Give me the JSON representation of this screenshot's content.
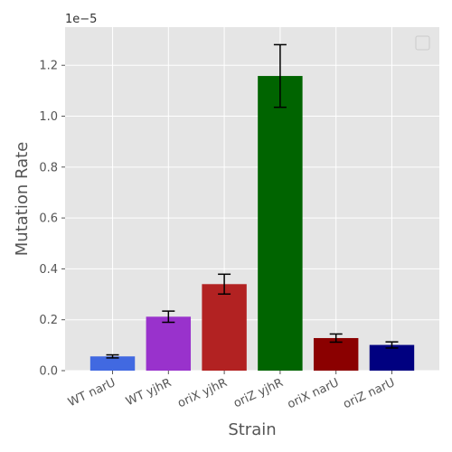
{
  "chart_data": {
    "type": "bar",
    "categories": [
      "WT narU",
      "WT yjhR",
      "oriX yjhR",
      "oriZ yjhR",
      "oriX narU",
      "oriZ narU"
    ],
    "values": [
      0.56,
      2.12,
      3.4,
      11.58,
      1.28,
      1.01
    ],
    "errors": [
      0.06,
      0.22,
      0.39,
      1.23,
      0.16,
      0.12
    ],
    "colors": [
      "#4169e1",
      "#9932cc",
      "#b22222",
      "#006400",
      "#8b0000",
      "#000080"
    ],
    "xlabel": "Strain",
    "ylabel": "Mutation Rate",
    "y_offset_label": "1e−5",
    "ylim": [
      0,
      13.5
    ],
    "yticks": [
      0,
      2,
      4,
      6,
      8,
      10,
      12
    ],
    "ytick_labels": [
      "0.0",
      "0.2",
      "0.4",
      "0.6",
      "0.8",
      "1.0",
      "1.2"
    ],
    "grid": true,
    "legend": {
      "placement": "top-right",
      "entries": []
    },
    "background": "#e5e5e5",
    "grid_color": "#ffffff"
  }
}
